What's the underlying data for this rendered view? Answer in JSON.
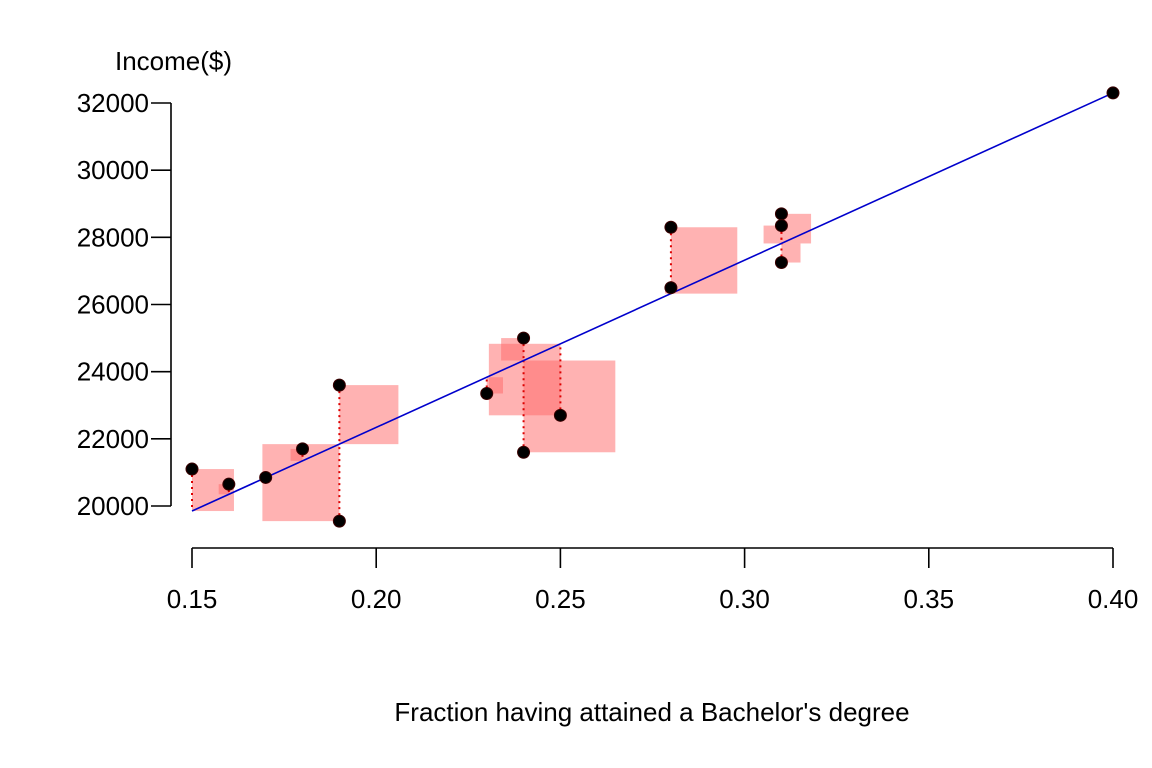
{
  "chart_data": {
    "type": "scatter",
    "title": "",
    "xlabel": "Fraction having attained a Bachelor's degree",
    "ylabel": "Income($)",
    "xlim": [
      0.15,
      0.4
    ],
    "ylim": [
      20000,
      32000
    ],
    "x_ticks": [
      "0.15",
      "0.20",
      "0.25",
      "0.30",
      "0.35",
      "0.40"
    ],
    "y_ticks": [
      "20000",
      "22000",
      "24000",
      "26000",
      "28000",
      "30000",
      "32000"
    ],
    "grid": false,
    "points": [
      {
        "x": 0.15,
        "y": 21100
      },
      {
        "x": 0.16,
        "y": 20650
      },
      {
        "x": 0.17,
        "y": 20850
      },
      {
        "x": 0.18,
        "y": 21700
      },
      {
        "x": 0.19,
        "y": 23600
      },
      {
        "x": 0.19,
        "y": 19550
      },
      {
        "x": 0.23,
        "y": 23350
      },
      {
        "x": 0.24,
        "y": 25000
      },
      {
        "x": 0.24,
        "y": 21600
      },
      {
        "x": 0.25,
        "y": 22700
      },
      {
        "x": 0.28,
        "y": 28300
      },
      {
        "x": 0.28,
        "y": 26500
      },
      {
        "x": 0.31,
        "y": 28700
      },
      {
        "x": 0.31,
        "y": 28350
      },
      {
        "x": 0.31,
        "y": 27250
      },
      {
        "x": 0.4,
        "y": 32300
      }
    ],
    "fit_line": {
      "x": [
        0.15,
        0.4
      ],
      "y": [
        19850,
        32300
      ]
    },
    "colors": {
      "points": "#000000",
      "point_edge": "#3a0000",
      "fit_line": "#0000cc",
      "residual_line": "#dd0000",
      "residual_square": "#ff6666",
      "residual_square_opacity": 0.5
    }
  }
}
